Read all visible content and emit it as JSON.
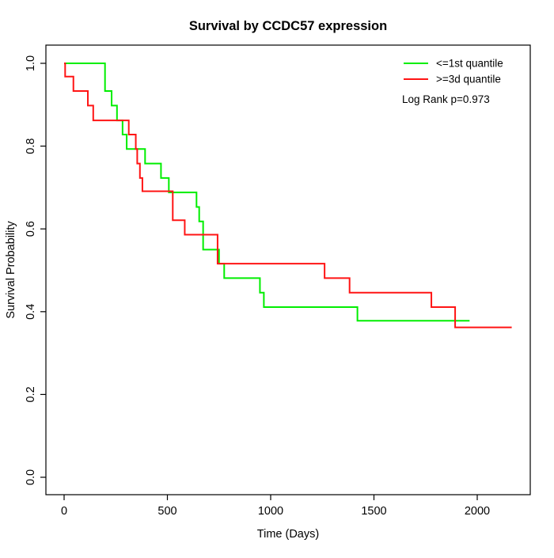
{
  "chart_data": {
    "type": "line",
    "subtype": "kaplan-meier-step",
    "title": "Survival by CCDC57 expression",
    "xlabel": "Time (Days)",
    "ylabel": "Survival Probability",
    "x_ticks": [
      0,
      500,
      1000,
      1500,
      2000
    ],
    "y_ticks": [
      0.0,
      0.2,
      0.4,
      0.6,
      0.8,
      1.0
    ],
    "xlim": [
      -88,
      2256
    ],
    "ylim": [
      -0.04,
      1.04
    ],
    "grid": false,
    "legend": {
      "position": "top-right",
      "frame": false
    },
    "annotation": "Log Rank p=0.973",
    "series": [
      {
        "name": "le-1st-quantile",
        "label": "<=1st quantile",
        "color": "#00ee00",
        "end_t": 1963,
        "points": [
          {
            "t": 0,
            "s": 1.0
          },
          {
            "t": 198,
            "s": 0.933
          },
          {
            "t": 230,
            "s": 0.898
          },
          {
            "t": 256,
            "s": 0.862
          },
          {
            "t": 283,
            "s": 0.828
          },
          {
            "t": 303,
            "s": 0.793
          },
          {
            "t": 392,
            "s": 0.758
          },
          {
            "t": 469,
            "s": 0.723
          },
          {
            "t": 507,
            "s": 0.688
          },
          {
            "t": 641,
            "s": 0.653
          },
          {
            "t": 654,
            "s": 0.618
          },
          {
            "t": 673,
            "s": 0.55
          },
          {
            "t": 750,
            "s": 0.516
          },
          {
            "t": 775,
            "s": 0.481
          },
          {
            "t": 948,
            "s": 0.446
          },
          {
            "t": 967,
            "s": 0.411
          },
          {
            "t": 1420,
            "s": 0.378
          }
        ]
      },
      {
        "name": "ge-3d-quantile",
        "label": ">=3d quantile",
        "color": "#ff1414",
        "end_t": 2167,
        "points": [
          {
            "t": 0,
            "s": 1.0
          },
          {
            "t": 5,
            "s": 0.968
          },
          {
            "t": 45,
            "s": 0.933
          },
          {
            "t": 115,
            "s": 0.898
          },
          {
            "t": 141,
            "s": 0.862
          },
          {
            "t": 313,
            "s": 0.828
          },
          {
            "t": 347,
            "s": 0.793
          },
          {
            "t": 354,
            "s": 0.758
          },
          {
            "t": 367,
            "s": 0.723
          },
          {
            "t": 379,
            "s": 0.691
          },
          {
            "t": 526,
            "s": 0.621
          },
          {
            "t": 584,
            "s": 0.586
          },
          {
            "t": 743,
            "s": 0.516
          },
          {
            "t": 1261,
            "s": 0.481
          },
          {
            "t": 1382,
            "s": 0.446
          },
          {
            "t": 1778,
            "s": 0.411
          },
          {
            "t": 1893,
            "s": 0.362
          }
        ]
      }
    ]
  }
}
